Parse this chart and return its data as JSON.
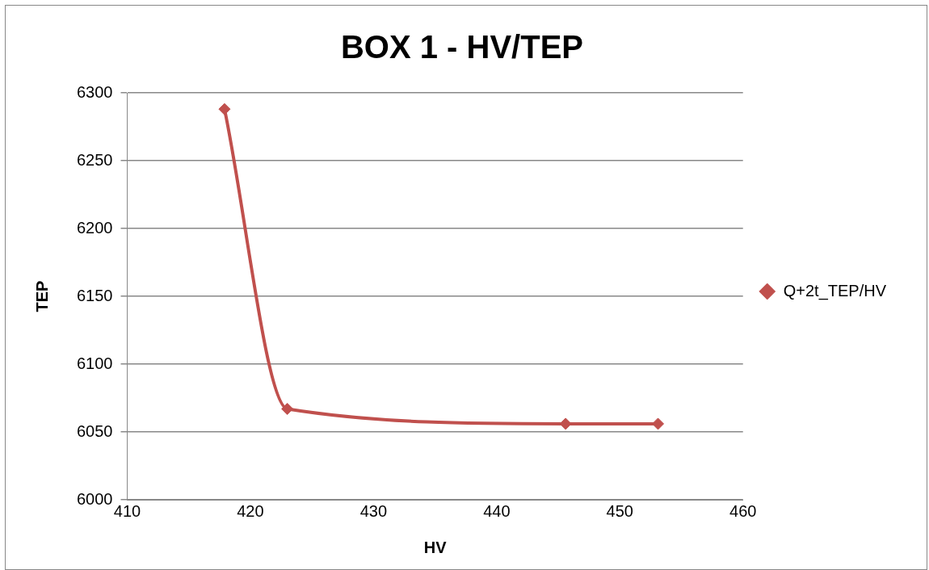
{
  "chart_data": {
    "type": "line",
    "title": "BOX 1 - HV/TEP",
    "xlabel": "HV",
    "ylabel": "TEP",
    "x": [
      417.9,
      423.0,
      445.6,
      453.1
    ],
    "series": [
      {
        "name": "Q+2t_TEP/HV",
        "color": "#c0504d",
        "values": [
          6288,
          6067,
          6056,
          6056
        ]
      }
    ],
    "xlim": [
      410,
      460
    ],
    "xticks": [
      410,
      420,
      430,
      440,
      450,
      460
    ],
    "ylim": [
      6000,
      6300
    ],
    "yticks": [
      6000,
      6050,
      6100,
      6150,
      6200,
      6250,
      6300
    ],
    "grid": "y",
    "legend": "right",
    "marker": "diamond",
    "line_style": "solid"
  }
}
